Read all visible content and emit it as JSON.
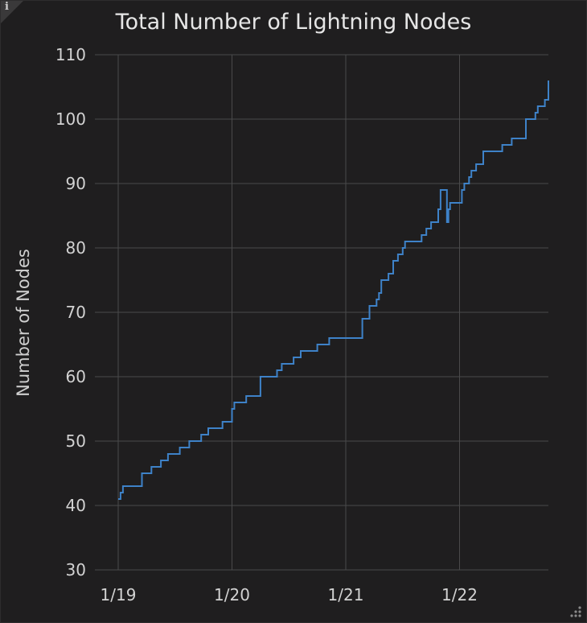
{
  "panel": {
    "info_icon": "info-icon",
    "resize_icon": "resize-handle-icon"
  },
  "colors": {
    "background": "#1f1e1f",
    "grid": "#4a4a4b",
    "line": "#3e82c8",
    "text": "#d2d2d2"
  },
  "chart_data": {
    "type": "line",
    "title": "Total Number of Lightning Nodes",
    "xlabel": "",
    "ylabel": "Number of Nodes",
    "ylim": [
      30,
      110
    ],
    "yticks": [
      30,
      40,
      50,
      60,
      70,
      80,
      90,
      100,
      110
    ],
    "xlim": [
      "1/19 00:00",
      "1/22 20:00"
    ],
    "xticks": [
      "1/19",
      "1/20",
      "1/21",
      "1/22"
    ],
    "grid": true,
    "step": true,
    "series": [
      {
        "values": [
          [
            "1/19 00:00",
            41
          ],
          [
            "1/19 00:30",
            42
          ],
          [
            "1/19 01:00",
            43
          ],
          [
            "1/19 04:00",
            43
          ],
          [
            "1/19 05:00",
            45
          ],
          [
            "1/19 07:00",
            46
          ],
          [
            "1/19 09:00",
            47
          ],
          [
            "1/19 10:30",
            48
          ],
          [
            "1/19 13:00",
            49
          ],
          [
            "1/19 15:00",
            50
          ],
          [
            "1/19 17:30",
            51
          ],
          [
            "1/19 19:00",
            52
          ],
          [
            "1/19 22:00",
            53
          ],
          [
            "1/19 23:59",
            53
          ],
          [
            "1/20 00:00",
            55
          ],
          [
            "1/20 00:30",
            56
          ],
          [
            "1/20 03:00",
            57
          ],
          [
            "1/20 06:00",
            60
          ],
          [
            "1/20 09:30",
            61
          ],
          [
            "1/20 10:30",
            62
          ],
          [
            "1/20 13:00",
            63
          ],
          [
            "1/20 14:30",
            64
          ],
          [
            "1/20 18:00",
            65
          ],
          [
            "1/20 20:30",
            66
          ],
          [
            "1/21 03:30",
            69
          ],
          [
            "1/21 05:00",
            71
          ],
          [
            "1/21 06:30",
            72
          ],
          [
            "1/21 07:00",
            73
          ],
          [
            "1/21 07:30",
            75
          ],
          [
            "1/21 09:00",
            76
          ],
          [
            "1/21 10:00",
            78
          ],
          [
            "1/21 11:00",
            79
          ],
          [
            "1/21 12:00",
            80
          ],
          [
            "1/21 12:30",
            81
          ],
          [
            "1/21 16:00",
            82
          ],
          [
            "1/21 17:00",
            83
          ],
          [
            "1/21 18:00",
            84
          ],
          [
            "1/21 19:30",
            86
          ],
          [
            "1/21 20:00",
            89
          ],
          [
            "1/21 21:00",
            89
          ],
          [
            "1/21 21:20",
            84
          ],
          [
            "1/21 21:40",
            86
          ],
          [
            "1/21 22:00",
            87
          ],
          [
            "1/22 00:30",
            89
          ],
          [
            "1/22 01:00",
            90
          ],
          [
            "1/22 02:00",
            91
          ],
          [
            "1/22 02:30",
            92
          ],
          [
            "1/22 03:30",
            93
          ],
          [
            "1/22 05:00",
            95
          ],
          [
            "1/22 09:00",
            96
          ],
          [
            "1/22 11:00",
            97
          ],
          [
            "1/22 14:00",
            100
          ],
          [
            "1/22 16:00",
            101
          ],
          [
            "1/22 16:30",
            102
          ],
          [
            "1/22 18:00",
            103
          ],
          [
            "1/22 19:00",
            104
          ],
          [
            "1/22 19:30",
            105
          ],
          [
            "1/22 20:00",
            106
          ]
        ]
      }
    ]
  }
}
